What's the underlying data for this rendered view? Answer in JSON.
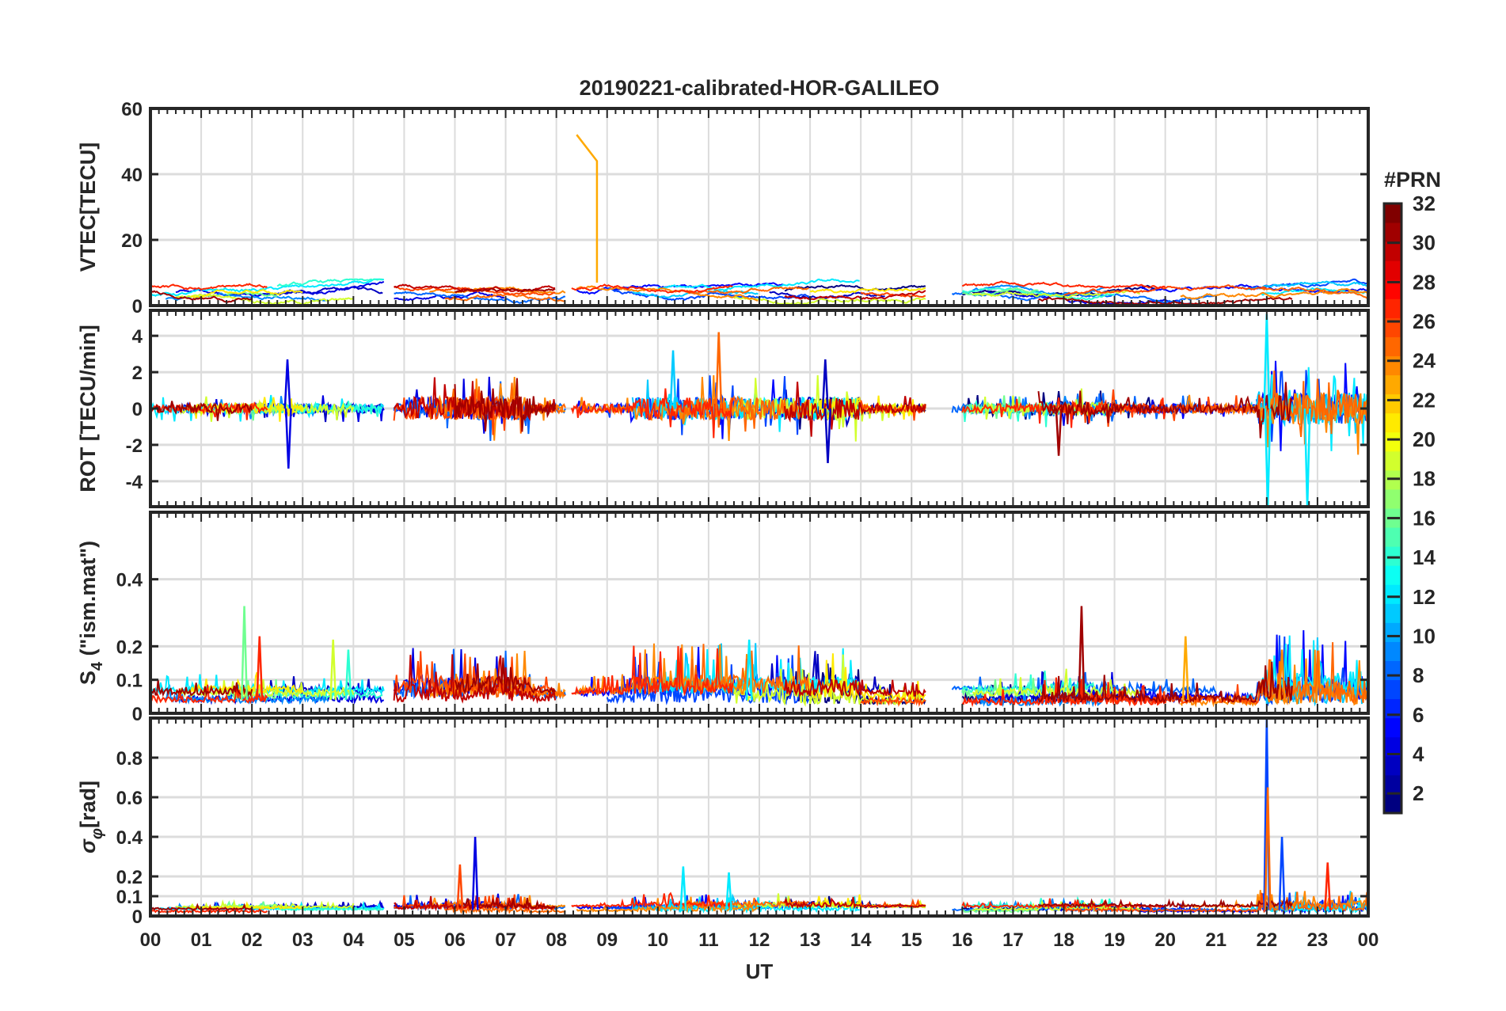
{
  "chart_data": {
    "type": "line",
    "title": "20190221-calibrated-HOR-GALILEO",
    "xlabel": "UT",
    "xlim": [
      0,
      24
    ],
    "xticks": [
      "00",
      "01",
      "02",
      "03",
      "04",
      "05",
      "06",
      "07",
      "08",
      "09",
      "10",
      "11",
      "12",
      "13",
      "14",
      "15",
      "16",
      "17",
      "18",
      "19",
      "20",
      "21",
      "22",
      "23",
      "00"
    ],
    "grid": true,
    "colorbar": {
      "label": "#PRN",
      "range": [
        1,
        32
      ],
      "ticks": [
        "2",
        "4",
        "6",
        "8",
        "10",
        "12",
        "14",
        "16",
        "18",
        "20",
        "22",
        "24",
        "26",
        "28",
        "30",
        "32"
      ],
      "colormap": "jet",
      "placement": "right"
    },
    "panels": [
      {
        "id": "vtec",
        "ylabel": "VTEC[TECU]",
        "ylim": [
          0,
          60
        ],
        "yticks": [
          "0",
          "20",
          "40",
          "60"
        ],
        "yvals": [
          0,
          20,
          40,
          60
        ],
        "baseline": 4,
        "noise": 0.6,
        "spikes": [
          {
            "prn": 23,
            "t": 8.4,
            "t_end": 8.8,
            "from": 52,
            "to": 44
          }
        ]
      },
      {
        "id": "rot",
        "ylabel": "ROT [TECU/min]",
        "ylim": [
          -5.4,
          5.4
        ],
        "yticks": [
          "-4",
          "-2",
          "0",
          "2",
          "4"
        ],
        "yvals": [
          -4,
          -2,
          0,
          2,
          4
        ],
        "baseline": 0,
        "noise": 0.25,
        "spikes": [
          {
            "prn": 4,
            "t": 2.7,
            "v": 2.7
          },
          {
            "prn": 4,
            "t": 2.72,
            "v": -3.3
          },
          {
            "prn": 25,
            "t": 11.2,
            "v": 4.2
          },
          {
            "prn": 11,
            "t": 10.3,
            "v": 3.2
          },
          {
            "prn": 12,
            "t": 22.0,
            "v": 5.2
          },
          {
            "prn": 12,
            "t": 22.02,
            "v": -5.5
          },
          {
            "prn": 12,
            "t": 22.8,
            "v": -5.5
          },
          {
            "prn": 31,
            "t": 17.9,
            "v": -2.6
          },
          {
            "prn": 3,
            "t": 13.3,
            "v": 2.7
          },
          {
            "prn": 3,
            "t": 13.35,
            "v": -3.0
          }
        ]
      },
      {
        "id": "s4",
        "ylabel": "S",
        "ylabel_sub": "4",
        "ylabel_rest": " (\"ism.mat\")",
        "ylim": [
          0,
          0.6
        ],
        "yticks": [
          "0",
          "0.1",
          "0.2",
          "0.4"
        ],
        "yvals": [
          0,
          0.1,
          0.2,
          0.4
        ],
        "baseline": 0.04,
        "noise": 0.02,
        "spikes": [
          {
            "prn": 16,
            "t": 1.85,
            "v": 0.32
          },
          {
            "prn": 31,
            "t": 18.35,
            "v": 0.32
          },
          {
            "prn": 27,
            "t": 2.15,
            "v": 0.23
          },
          {
            "prn": 12,
            "t": 11.8,
            "v": 0.22
          },
          {
            "prn": 19,
            "t": 3.6,
            "v": 0.22
          },
          {
            "prn": 23,
            "t": 20.4,
            "v": 0.23
          },
          {
            "prn": 14,
            "t": 3.9,
            "v": 0.19
          },
          {
            "prn": 24,
            "t": 22.3,
            "v": 0.19
          }
        ]
      },
      {
        "id": "sigphi",
        "ylabel": "σ",
        "ylabel_sub": "φ",
        "ylabel_rest": "[rad]",
        "ylim": [
          0,
          1.0
        ],
        "yticks": [
          "0",
          "0.1",
          "0.2",
          "0.4",
          "0.6",
          "0.8"
        ],
        "yvals": [
          0,
          0.1,
          0.2,
          0.4,
          0.6,
          0.8
        ],
        "baseline": 0.03,
        "noise": 0.01,
        "spikes": [
          {
            "prn": 7,
            "t": 22.0,
            "v": 1.0
          },
          {
            "prn": 25,
            "t": 22.02,
            "v": 0.65
          },
          {
            "prn": 4,
            "t": 6.4,
            "v": 0.4
          },
          {
            "prn": 7,
            "t": 22.3,
            "v": 0.4
          },
          {
            "prn": 27,
            "t": 23.2,
            "v": 0.27
          },
          {
            "prn": 12,
            "t": 10.5,
            "v": 0.25
          },
          {
            "prn": 12,
            "t": 11.4,
            "v": 0.22
          },
          {
            "prn": 26,
            "t": 6.1,
            "v": 0.26
          }
        ]
      }
    ],
    "series": [
      {
        "prn": 1,
        "passes": [
          [
            12.5,
            15.3
          ],
          [
            16.0,
            19.8
          ]
        ]
      },
      {
        "prn": 3,
        "passes": [
          [
            2.0,
            4.6
          ],
          [
            12.2,
            14.5
          ]
        ]
      },
      {
        "prn": 4,
        "passes": [
          [
            0.5,
            4.6
          ],
          [
            4.8,
            7.0
          ],
          [
            16.5,
            20.5
          ]
        ]
      },
      {
        "prn": 5,
        "passes": [
          [
            8.4,
            12.5
          ],
          [
            19.5,
            24.0
          ]
        ]
      },
      {
        "prn": 7,
        "passes": [
          [
            9.0,
            13.0
          ],
          [
            21.8,
            24.0
          ]
        ]
      },
      {
        "prn": 8,
        "passes": [
          [
            4.8,
            8.2
          ],
          [
            15.8,
            21.0
          ]
        ]
      },
      {
        "prn": 9,
        "passes": [
          [
            0.3,
            3.5
          ],
          [
            16.2,
            18.8
          ]
        ]
      },
      {
        "prn": 11,
        "passes": [
          [
            9.5,
            12.0
          ],
          [
            21.5,
            24.0
          ]
        ]
      },
      {
        "prn": 12,
        "passes": [
          [
            0.0,
            4.6
          ],
          [
            10.0,
            14.0
          ],
          [
            21.9,
            24.0
          ]
        ]
      },
      {
        "prn": 14,
        "passes": [
          [
            2.5,
            4.6
          ],
          [
            16.0,
            19.0
          ]
        ]
      },
      {
        "prn": 16,
        "passes": [
          [
            1.5,
            2.5
          ],
          [
            16.0,
            17.5
          ]
        ]
      },
      {
        "prn": 19,
        "passes": [
          [
            0.5,
            4.0
          ],
          [
            11.5,
            15.3
          ],
          [
            16.2,
            19.5
          ]
        ]
      },
      {
        "prn": 21,
        "passes": [
          [
            0.8,
            3.0
          ],
          [
            13.0,
            15.3
          ]
        ]
      },
      {
        "prn": 24,
        "passes": [
          [
            5.5,
            8.2
          ],
          [
            8.4,
            12.0
          ],
          [
            20.3,
            24.0
          ]
        ]
      },
      {
        "prn": 25,
        "passes": [
          [
            5.8,
            8.2
          ],
          [
            10.5,
            13.0
          ],
          [
            21.9,
            24.0
          ]
        ]
      },
      {
        "prn": 26,
        "passes": [
          [
            4.8,
            8.0
          ],
          [
            14.0,
            15.3
          ],
          [
            18.0,
            22.0
          ]
        ]
      },
      {
        "prn": 27,
        "passes": [
          [
            0.0,
            2.3
          ],
          [
            8.3,
            11.5
          ],
          [
            16.0,
            20.0
          ]
        ]
      },
      {
        "prn": 30,
        "passes": [
          [
            4.8,
            8.0
          ],
          [
            12.5,
            15.3
          ]
        ]
      },
      {
        "prn": 31,
        "passes": [
          [
            0.0,
            2.0
          ],
          [
            6.0,
            8.0
          ],
          [
            17.5,
            22.5
          ]
        ]
      }
    ]
  }
}
